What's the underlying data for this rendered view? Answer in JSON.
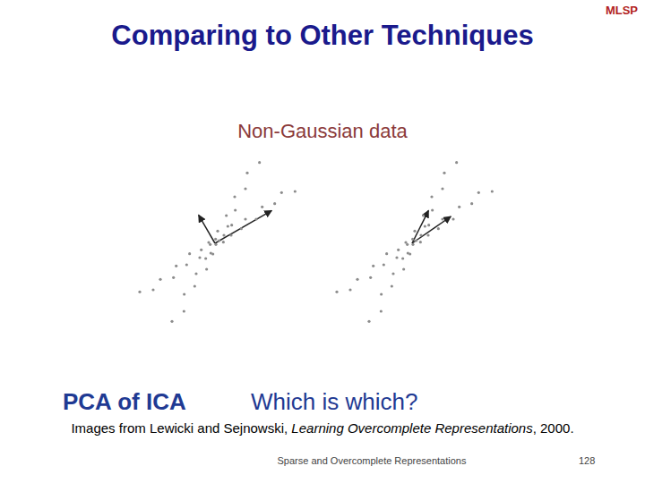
{
  "logo": "MLSP",
  "title": "Comparing to Other Techniques",
  "subtitle": "Non-Gaussian data",
  "chart_data": [
    {
      "type": "scatter",
      "x": [
        -2.52,
        -2.07,
        -1.83,
        -1.39,
        -1.3,
        -0.95,
        -0.85,
        -0.51,
        -0.46,
        -0.14,
        -0.21,
        0.03,
        0.02,
        0.28,
        0.3,
        0.54,
        0.56,
        0.88,
        1.02,
        1.38,
        1.58,
        2.0,
        2.23,
        2.68,
        -1.44,
        -1.04,
        -1.03,
        -0.68,
        -0.63,
        -0.28,
        -0.31,
        -0.07,
        -0.16,
        0.14,
        0.09,
        0.43,
        0.38,
        0.68,
        0.66,
        1.02,
        1.08,
        1.49
      ],
      "values": [
        -1.63,
        -1.56,
        -1.21,
        -1.15,
        -0.76,
        -0.72,
        -0.35,
        -0.48,
        -0.22,
        -0.33,
        0.03,
        -0.04,
        0.14,
        0.04,
        0.27,
        0.27,
        0.61,
        0.49,
        0.81,
        0.81,
        1.22,
        1.33,
        1.7,
        1.74,
        -2.62,
        -2.28,
        -1.71,
        -1.44,
        -1.02,
        -0.87,
        -0.51,
        -0.36,
        -0.04,
        0.09,
        0.41,
        0.57,
        0.93,
        1.11,
        1.56,
        1.83,
        2.36,
        2.71
      ],
      "xlim": [
        -3,
        3
      ],
      "ylim": [
        -3,
        3
      ],
      "tick_labels": false,
      "color": "#8c8c8c",
      "vectors": [
        {
          "x": 1.9,
          "y": 1.1
        },
        {
          "x": -0.55,
          "y": 0.95
        }
      ]
    },
    {
      "type": "scatter",
      "x": [
        -2.52,
        -2.07,
        -1.83,
        -1.39,
        -1.3,
        -0.95,
        -0.85,
        -0.51,
        -0.46,
        -0.14,
        -0.21,
        0.03,
        0.02,
        0.28,
        0.3,
        0.54,
        0.56,
        0.88,
        1.02,
        1.38,
        1.58,
        2.0,
        2.23,
        2.68,
        -1.44,
        -1.04,
        -1.03,
        -0.68,
        -0.63,
        -0.28,
        -0.31,
        -0.07,
        -0.16,
        0.14,
        0.09,
        0.43,
        0.38,
        0.68,
        0.66,
        1.02,
        1.08,
        1.49
      ],
      "values": [
        -1.63,
        -1.56,
        -1.21,
        -1.15,
        -0.76,
        -0.72,
        -0.35,
        -0.48,
        -0.22,
        -0.33,
        0.03,
        -0.04,
        0.14,
        0.04,
        0.27,
        0.27,
        0.61,
        0.49,
        0.81,
        0.81,
        1.22,
        1.33,
        1.7,
        1.74,
        -2.62,
        -2.28,
        -1.71,
        -1.44,
        -1.02,
        -0.87,
        -0.51,
        -0.36,
        -0.04,
        0.09,
        0.41,
        0.57,
        0.93,
        1.11,
        1.56,
        1.83,
        2.36,
        2.71
      ],
      "xlim": [
        -3,
        3
      ],
      "ylim": [
        -3,
        3
      ],
      "tick_labels": false,
      "color": "#8c8c8c",
      "vectors": [
        {
          "x": 1.3,
          "y": 0.9
        },
        {
          "x": 0.55,
          "y": 1.1
        }
      ]
    }
  ],
  "labels": [
    "PCA of ICA",
    "Which is which?"
  ],
  "source": [
    "Images from Lewicki and Sejnowski, ",
    "Learning Overcomplete Representations",
    ", 2000."
  ],
  "footer": {
    "text": "Sparse and Overcomplete Representations",
    "page": 128
  }
}
